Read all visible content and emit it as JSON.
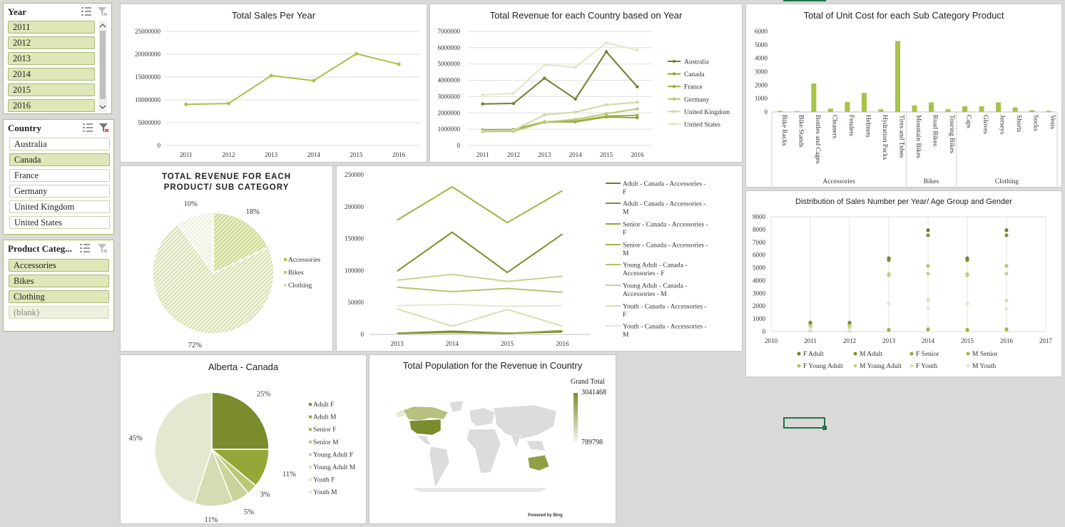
{
  "slicers": {
    "year": {
      "title": "Year",
      "items": [
        "2011",
        "2012",
        "2013",
        "2014",
        "2015",
        "2016"
      ]
    },
    "country": {
      "title": "Country",
      "items": [
        "Australia",
        "Canada",
        "France",
        "Germany",
        "United Kingdom",
        "United States"
      ],
      "selected": "Canada"
    },
    "category": {
      "title": "Product Categ...",
      "items": [
        "Accessories",
        "Bikes",
        "Clothing",
        "(blank)"
      ]
    }
  },
  "theme": {
    "accent": "#a9c24a",
    "dark": "#7a8c2e",
    "light": "#dfe6b7"
  },
  "chart_data": [
    {
      "id": "sales_per_year",
      "type": "line",
      "title": "Total Sales Per Year",
      "x": [
        "2011",
        "2012",
        "2013",
        "2014",
        "2015",
        "2016"
      ],
      "values": [
        9000000,
        9200000,
        15300000,
        14200000,
        20100000,
        17800000
      ],
      "ylim": [
        0,
        25000000
      ],
      "yticks": [
        "25000000",
        "20000000",
        "15000000",
        "10000000",
        "5000000",
        "0"
      ]
    },
    {
      "id": "revenue_country_year",
      "type": "line",
      "title": "Total Revenue for each Country based on Year",
      "x": [
        "2011",
        "2012",
        "2013",
        "2014",
        "2015",
        "2016"
      ],
      "ylim": [
        0,
        7000000
      ],
      "yticks": [
        "7000000",
        "6000000",
        "5000000",
        "4000000",
        "3000000",
        "2000000",
        "1000000",
        "0"
      ],
      "series": [
        {
          "name": "Australia",
          "values": [
            2550000,
            2580000,
            4130000,
            2850000,
            5750000,
            3600000
          ]
        },
        {
          "name": "Canada",
          "values": [
            960000,
            980000,
            1450000,
            1450000,
            1750000,
            1700000
          ]
        },
        {
          "name": "France",
          "values": [
            860000,
            880000,
            1420000,
            1500000,
            1800000,
            1850000
          ]
        },
        {
          "name": "Germany",
          "values": [
            880000,
            900000,
            1430000,
            1600000,
            1950000,
            2250000
          ]
        },
        {
          "name": "United Kingdom",
          "values": [
            900000,
            930000,
            1880000,
            2050000,
            2500000,
            2650000
          ]
        },
        {
          "name": "United States",
          "values": [
            3100000,
            3200000,
            4950000,
            4800000,
            6300000,
            5850000
          ]
        }
      ]
    },
    {
      "id": "unit_cost_subcategory",
      "type": "bar",
      "title": "Total of Unit Cost for each Sub Category Product",
      "categories": [
        "Bike Racks",
        "Bike Stands",
        "Bottles and Cages",
        "Cleaners",
        "Fenders",
        "Helmets",
        "Hydration Packs",
        "Tires and Tubes",
        "Mountain Bikes",
        "Road Bikes",
        "Touring Bikes",
        "Caps",
        "Gloves",
        "Jerseys",
        "Shorts",
        "Socks",
        "Vests"
      ],
      "groups": [
        {
          "name": "Accessories",
          "count": 8
        },
        {
          "name": "Bikes",
          "count": 3
        },
        {
          "name": "Clothing",
          "count": 6
        }
      ],
      "values": [
        80,
        60,
        2120,
        250,
        750,
        1420,
        200,
        5280,
        480,
        720,
        200,
        430,
        430,
        720,
        330,
        130,
        90
      ],
      "ylim": [
        0,
        6000
      ],
      "yticks": [
        "6000",
        "5000",
        "4000",
        "3000",
        "2000",
        "1000",
        "0"
      ]
    },
    {
      "id": "revenue_product_pie",
      "type": "pie",
      "title": "TOTAL REVENUE FOR EACH PRODUCT/ SUB CATEGORY",
      "labels": [
        "Accessories",
        "Bikes",
        "Clothing"
      ],
      "values": [
        18,
        72,
        10
      ],
      "data_labels": [
        "18%",
        "72%",
        "10%"
      ]
    },
    {
      "id": "canada_accessories_lines",
      "type": "line",
      "x": [
        "2013",
        "2014",
        "2015",
        "2016"
      ],
      "ylim": [
        0,
        250000
      ],
      "yticks": [
        "250000",
        "200000",
        "150000",
        "100000",
        "50000",
        "0"
      ],
      "series": [
        {
          "name": "Adult - Canada - Accessories - F",
          "values": [
            2000,
            5000,
            2000,
            4000
          ]
        },
        {
          "name": "Adult - Canada - Accessories - M",
          "values": [
            99000,
            160000,
            97000,
            157000
          ]
        },
        {
          "name": "Senior - Canada - Accessories - F",
          "values": [
            1500,
            3000,
            1500,
            6000
          ]
        },
        {
          "name": "Senior - Canada - Accessories - M",
          "values": [
            179000,
            231000,
            175000,
            225000
          ]
        },
        {
          "name": "Young Adult - Canada - Accessories - F",
          "values": [
            74000,
            67000,
            72000,
            66000
          ]
        },
        {
          "name": "Young Adult - Canada - Accessories - M",
          "values": [
            85000,
            94000,
            83000,
            91000
          ]
        },
        {
          "name": "Youth - Canada - Accessories - F",
          "values": [
            40000,
            13000,
            39000,
            13000
          ]
        },
        {
          "name": "Youth - Canada - Accessories - M",
          "values": [
            45000,
            47000,
            44000,
            45000
          ]
        }
      ]
    },
    {
      "id": "sales_distribution_scatter",
      "type": "scatter",
      "title": "Distribution of Sales Number per Year/ Age Group and Gender",
      "xlim": [
        2010,
        2017
      ],
      "ylim": [
        0,
        9000
      ],
      "xticks": [
        "2010",
        "2011",
        "2012",
        "2013",
        "2014",
        "2015",
        "2016",
        "2017"
      ],
      "yticks": [
        "9000",
        "8000",
        "7000",
        "6000",
        "5000",
        "4000",
        "3000",
        "2000",
        "1000",
        "0"
      ],
      "x": [
        2011,
        2012,
        2013,
        2014,
        2015,
        2016
      ],
      "series": [
        {
          "name": "F Adult",
          "values": [
            700,
            700,
            5750,
            7950,
            5750,
            7950
          ]
        },
        {
          "name": "M Adult",
          "values": [
            620,
            620,
            5600,
            7550,
            5600,
            7550
          ]
        },
        {
          "name": "F Senior",
          "values": [
            100,
            100,
            150,
            180,
            150,
            180
          ]
        },
        {
          "name": "M Senior",
          "values": [
            80,
            80,
            120,
            160,
            120,
            160
          ]
        },
        {
          "name": "F Young Adult",
          "values": [
            450,
            450,
            4500,
            5150,
            4500,
            5150
          ]
        },
        {
          "name": "M Young Adult",
          "values": [
            400,
            400,
            4400,
            4550,
            4400,
            4550
          ]
        },
        {
          "name": "F Youth",
          "values": [
            150,
            150,
            2200,
            2450,
            2200,
            2450
          ]
        },
        {
          "name": "M Youth",
          "values": [
            120,
            120,
            2180,
            1800,
            2180,
            1800
          ]
        }
      ]
    },
    {
      "id": "alberta_pie",
      "type": "pie",
      "title": "Alberta - Canada",
      "labels": [
        "Adult F",
        "Adult M",
        "Senior F",
        "Senior M",
        "Young Adult F",
        "Young Adult M",
        "Youth F",
        "Youth M"
      ],
      "values": [
        25,
        11,
        0,
        3,
        5,
        11,
        0,
        45
      ],
      "data_labels": [
        "25%",
        "11%",
        "",
        "3%",
        "5%",
        "11%",
        "",
        "45%"
      ]
    },
    {
      "id": "population_map",
      "type": "map",
      "title": "Total Population for the Revenue in Country",
      "legend_title": "Grand Total",
      "max": "3041468",
      "min": "789798",
      "credit": "Powered by Bing"
    }
  ]
}
